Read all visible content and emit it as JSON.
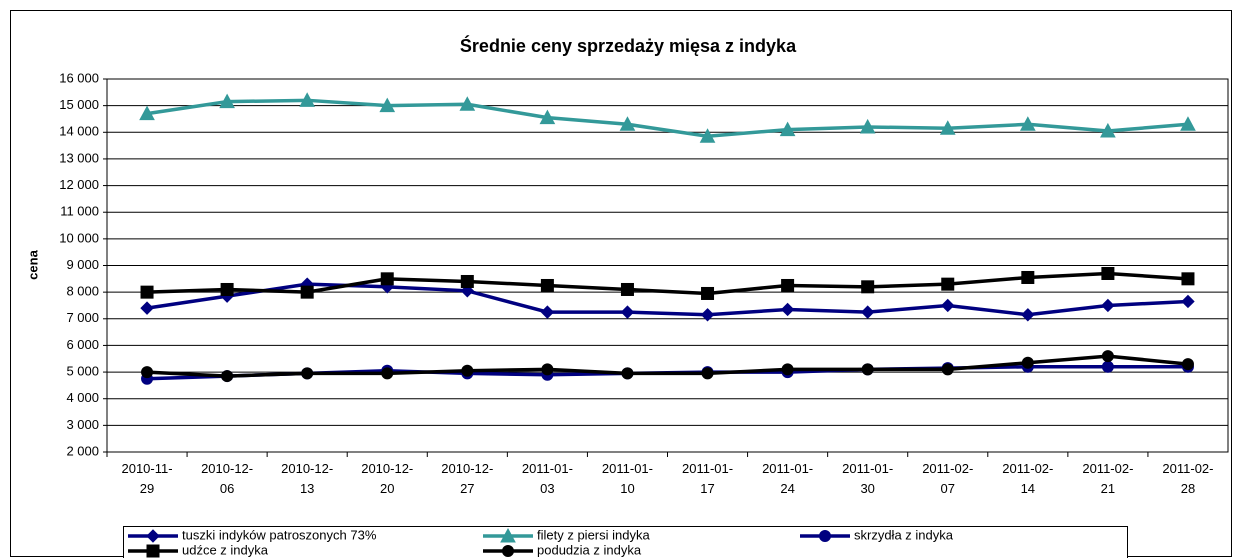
{
  "chart_data": {
    "type": "line",
    "title": "Średnie ceny sprzedaży mięsa z indyka",
    "y_label": "cena",
    "categories": [
      "2010-11-29",
      "2010-12-06",
      "2010-12-13",
      "2010-12-20",
      "2010-12-27",
      "2011-01-03",
      "2011-01-10",
      "2011-01-17",
      "2011-01-24",
      "2011-01-30",
      "2011-02-07",
      "2011-02-14",
      "2011-02-21",
      "2011-02-28"
    ],
    "ylim": [
      2000,
      16000
    ],
    "yticks": [
      {
        "value": 2000,
        "label": "2 000"
      },
      {
        "value": 3000,
        "label": "3 000"
      },
      {
        "value": 4000,
        "label": "4 000"
      },
      {
        "value": 5000,
        "label": "5 000"
      },
      {
        "value": 6000,
        "label": "6 000"
      },
      {
        "value": 7000,
        "label": "7 000"
      },
      {
        "value": 8000,
        "label": "8 000"
      },
      {
        "value": 9000,
        "label": "9 000"
      },
      {
        "value": 10000,
        "label": "10 000"
      },
      {
        "value": 11000,
        "label": "11 000"
      },
      {
        "value": 12000,
        "label": "12 000"
      },
      {
        "value": 13000,
        "label": "13 000"
      },
      {
        "value": 14000,
        "label": "14 000"
      },
      {
        "value": 15000,
        "label": "15 000"
      },
      {
        "value": 16000,
        "label": "16 000"
      }
    ],
    "grid": true,
    "legend": "bottom",
    "series": [
      {
        "name": "tuszki indyków  patroszonych 73%",
        "color": "#000080",
        "marker": "diamond",
        "values": [
          7400,
          7850,
          8300,
          8200,
          8050,
          7250,
          7250,
          7150,
          7350,
          7250,
          7500,
          7150,
          7500,
          7650
        ]
      },
      {
        "name": "filety z piersi indyka",
        "color": "#339999",
        "marker": "triangle",
        "values": [
          14700,
          15150,
          15200,
          15000,
          15050,
          14550,
          14300,
          13850,
          14100,
          14200,
          14150,
          14300,
          14050,
          14300
        ]
      },
      {
        "name": "skrzydła z indyka",
        "color": "#000080",
        "marker": "circle",
        "values": [
          4750,
          4850,
          4950,
          5050,
          4950,
          4900,
          4950,
          5000,
          5000,
          5100,
          5150,
          5200,
          5200,
          5200
        ]
      },
      {
        "name": "udźce z indyka",
        "color": "#000000",
        "marker": "square",
        "values": [
          8000,
          8100,
          8000,
          8500,
          8400,
          8250,
          8100,
          7950,
          8250,
          8200,
          8300,
          8550,
          8700,
          8500
        ]
      },
      {
        "name": "podudzia z indyka",
        "color": "#000000",
        "marker": "circle",
        "values": [
          5000,
          4850,
          4950,
          4950,
          5050,
          5100,
          4950,
          4950,
          5100,
          5100,
          5100,
          5350,
          5600,
          5300
        ]
      }
    ]
  }
}
